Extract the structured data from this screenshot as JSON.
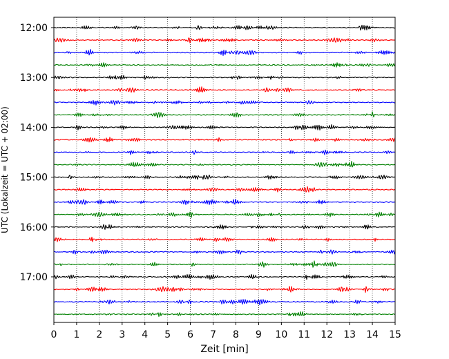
{
  "chart_data": {
    "type": "line",
    "title": "",
    "xlabel": "Zeit  [min]",
    "ylabel": "UTC (Lokalzeit = UTC + 02:00)",
    "xlim": [
      0,
      15
    ],
    "x_ticks": [
      "0",
      "1",
      "2",
      "3",
      "4",
      "5",
      "6",
      "7",
      "8",
      "9",
      "10",
      "11",
      "12",
      "13",
      "14",
      "15"
    ],
    "y_ticks": [
      "12:00",
      "13:00",
      "14:00",
      "15:00",
      "16:00",
      "17:00"
    ],
    "start_time": "12:00",
    "trace_interval_min": 15,
    "trace_count": 24,
    "grid": "vertical dotted",
    "colors": [
      "#000000",
      "#ff0000",
      "#0000ff",
      "#008000"
    ]
  }
}
